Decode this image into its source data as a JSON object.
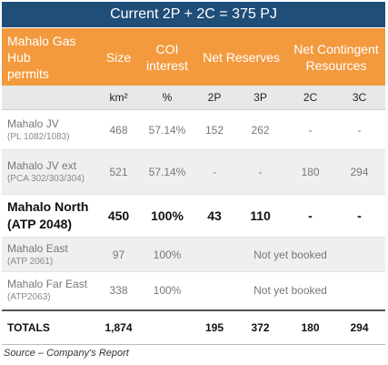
{
  "title": "Current 2P + 2C = 375 PJ",
  "headers": {
    "name_line1": "Mahalo Gas Hub",
    "name_line2": "permits",
    "size": "Size",
    "coi_line1": "COI",
    "coi_line2": "interest",
    "net_reserves": "Net Reserves",
    "net_contingent_line1": "Net Contingent",
    "net_contingent_line2": "Resources"
  },
  "units": {
    "size": "km²",
    "coi": "%",
    "p2": "2P",
    "p3": "3P",
    "c2": "2C",
    "c3": "3C"
  },
  "rows": [
    {
      "name": "Mahalo JV",
      "sub": "(PL 1082/1083)",
      "size": "468",
      "coi": "57.14%",
      "p2": "152",
      "p3": "262",
      "c2": "-",
      "c3": "-",
      "note": ""
    },
    {
      "name": "Mahalo JV ext",
      "sub": "(PCA 302/303/304)",
      "size": "521",
      "coi": "57.14%",
      "p2": "-",
      "p3": "-",
      "c2": "180",
      "c3": "294",
      "note": ""
    },
    {
      "name": "Mahalo North",
      "sub": "(ATP 2048)",
      "size": "450",
      "coi": "100%",
      "p2": "43",
      "p3": "110",
      "c2": "-",
      "c3": "-",
      "note": ""
    },
    {
      "name": "Mahalo East",
      "sub": "(ATP 2061)",
      "size": "97",
      "coi": "100%",
      "note": "Not yet booked"
    },
    {
      "name": "Mahalo Far East",
      "sub": "(ATP2063)",
      "size": "338",
      "coi": "100%",
      "note": "Not yet booked"
    }
  ],
  "totals": {
    "label": "TOTALS",
    "size": "1,874",
    "p2": "195",
    "p3": "372",
    "c2": "180",
    "c3": "294"
  },
  "source": "Source – Company's Report",
  "colors": {
    "title_bg": "#1f4e79",
    "header_bg": "#f39a3f",
    "units_bg": "#e8e8e8",
    "alt_row_bg": "#efefef"
  }
}
